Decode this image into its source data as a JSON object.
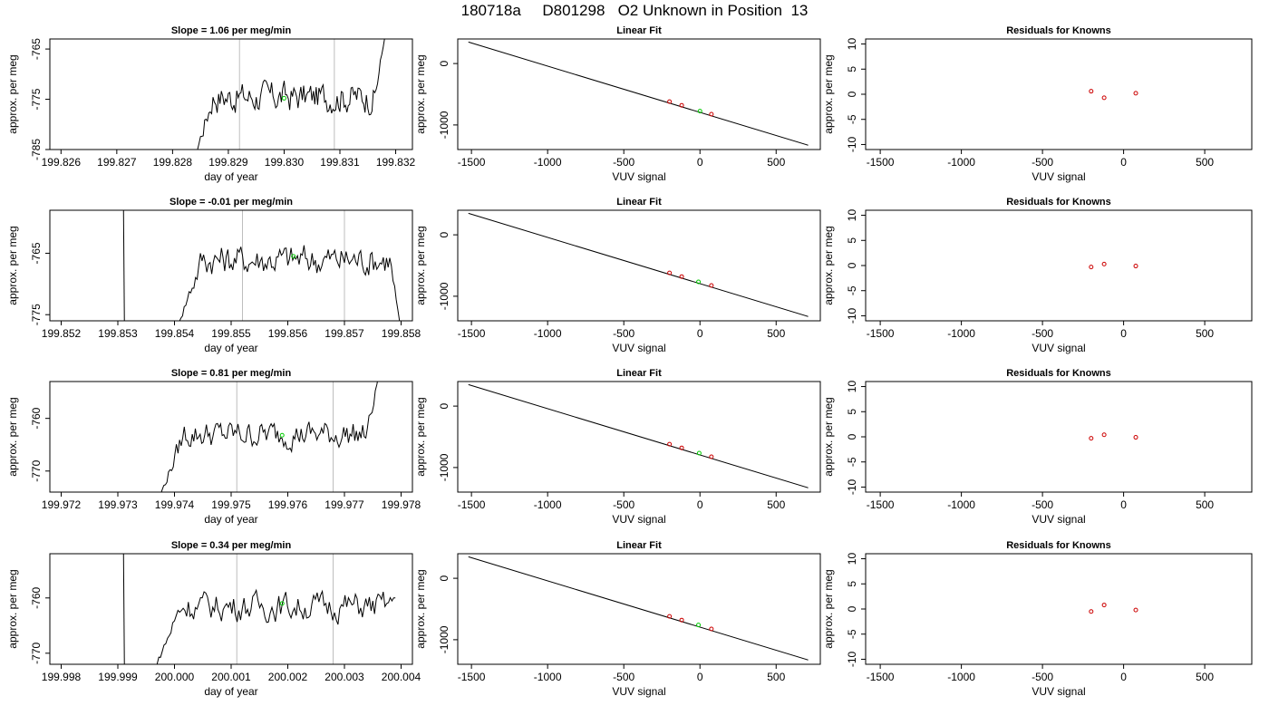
{
  "page_title": "180718a     D801298   O2 Unknown in Position  13",
  "colors": {
    "trace": "#000000",
    "gridline": "#bebebe",
    "unknown_point": "#00cc00",
    "known_point": "#cc0000",
    "frame": "#000000"
  },
  "chart_data": [
    {
      "type": "line",
      "row": 0,
      "title": "Slope =  1.06  per meg/min",
      "xlabel": "day of year",
      "ylabel": "approx. per meg",
      "xlim": [
        199.8258,
        199.8323
      ],
      "ylim": [
        -785,
        -763
      ],
      "xticks": [
        199.826,
        199.827,
        199.828,
        199.829,
        199.83,
        199.831,
        199.832
      ],
      "xtick_labels": [
        "199.826",
        "199.827",
        "199.828",
        "199.829",
        "199.830",
        "199.831",
        "199.832"
      ],
      "yticks": [
        -785,
        -775,
        -765
      ],
      "ytick_labels": [
        "-785",
        "-775",
        "-765"
      ],
      "vlines": [
        199.8292,
        199.8309
      ],
      "trace_range": [
        199.8283,
        199.8318
      ],
      "trace_start": -790,
      "trace_end": -763,
      "trace_center": -774.5,
      "trace_amplitude": 3,
      "marker": {
        "x": 199.83,
        "y": -774.8
      }
    },
    {
      "type": "line",
      "row": 1,
      "title": "Slope =  -0.01  per meg/min",
      "xlabel": "day of year",
      "ylabel": "approx. per meg",
      "xlim": [
        199.8518,
        199.8582
      ],
      "ylim": [
        -776,
        -758
      ],
      "xticks": [
        199.852,
        199.853,
        199.854,
        199.855,
        199.856,
        199.857,
        199.858
      ],
      "xtick_labels": [
        "199.852",
        "199.853",
        "199.854",
        "199.855",
        "199.856",
        "199.857",
        "199.858"
      ],
      "yticks": [
        -775,
        -765
      ],
      "ytick_labels": [
        "-775",
        "-765"
      ],
      "vlines": [
        199.8552,
        199.857
      ],
      "spike_x": 199.8531,
      "trace_range": [
        199.854,
        199.858
      ],
      "trace_start": -778,
      "trace_end": -778,
      "trace_center": -766,
      "trace_amplitude": 2.5,
      "marker": {
        "x": 199.8561,
        "y": -765.5
      }
    },
    {
      "type": "line",
      "row": 2,
      "title": "Slope =  0.81  per meg/min",
      "xlabel": "day of year",
      "ylabel": "approx. per meg",
      "xlim": [
        199.9718,
        199.9782
      ],
      "ylim": [
        -774,
        -753
      ],
      "xticks": [
        199.972,
        199.973,
        199.974,
        199.975,
        199.976,
        199.977,
        199.978
      ],
      "xtick_labels": [
        "199.972",
        "199.973",
        "199.974",
        "199.975",
        "199.976",
        "199.977",
        "199.978"
      ],
      "yticks": [
        -770,
        -760
      ],
      "ytick_labels": [
        "-770",
        "-760"
      ],
      "vlines": [
        199.9751,
        199.9768
      ],
      "trace_range": [
        199.9737,
        199.9776
      ],
      "trace_start": -776,
      "trace_end": -752,
      "trace_center": -763,
      "trace_amplitude": 2.5,
      "marker": {
        "x": 199.9759,
        "y": -763.2
      }
    },
    {
      "type": "line",
      "row": 3,
      "title": "Slope =  0.34  per meg/min",
      "xlabel": "day of year",
      "ylabel": "approx. per meg",
      "xlim": [
        199.9978,
        200.0042
      ],
      "ylim": [
        -772,
        -752
      ],
      "xticks": [
        199.998,
        199.999,
        200.0,
        200.001,
        200.002,
        200.003,
        200.004
      ],
      "xtick_labels": [
        "199.998",
        "199.999",
        "200.000",
        "200.001",
        "200.002",
        "200.003",
        "200.004"
      ],
      "yticks": [
        -770,
        -760
      ],
      "ytick_labels": [
        "-770",
        "-760"
      ],
      "vlines": [
        200.0011,
        200.0028
      ],
      "spike_x": 199.9991,
      "trace_range": [
        199.9996,
        200.0039
      ],
      "trace_start": -774,
      "trace_end": -760,
      "trace_center": -761.5,
      "trace_amplitude": 2.5,
      "marker": {
        "x": 200.0019,
        "y": -761.0
      }
    },
    {
      "type": "scatter",
      "row": 0,
      "title": "Linear Fit",
      "xlabel": "VUV signal",
      "ylabel": "approx. per meg",
      "xlim": [
        -1590,
        790
      ],
      "ylim": [
        -1400,
        400
      ],
      "xticks": [
        -1500,
        -1000,
        -500,
        0,
        500
      ],
      "xtick_labels": [
        "-1500",
        "-1000",
        "-500",
        "0",
        "500"
      ],
      "yticks": [
        -1000,
        0
      ],
      "ytick_labels": [
        "-1000",
        "0"
      ],
      "fit_line": [
        [
          -1520,
          350
        ],
        [
          710,
          -1330
        ]
      ],
      "known_points": [
        [
          -200,
          -620
        ],
        [
          -120,
          -680
        ],
        [
          75,
          -825
        ]
      ],
      "unknown_point": [
        0,
        -775
      ]
    },
    {
      "type": "scatter",
      "row": 1,
      "title": "Linear Fit",
      "xlabel": "VUV signal",
      "ylabel": "approx. per meg",
      "xlim": [
        -1590,
        790
      ],
      "ylim": [
        -1400,
        400
      ],
      "xticks": [
        -1500,
        -1000,
        -500,
        0,
        500
      ],
      "xtick_labels": [
        "-1500",
        "-1000",
        "-500",
        "0",
        "500"
      ],
      "yticks": [
        -1000,
        0
      ],
      "ytick_labels": [
        "-1000",
        "0"
      ],
      "fit_line": [
        [
          -1520,
          350
        ],
        [
          710,
          -1330
        ]
      ],
      "known_points": [
        [
          -200,
          -620
        ],
        [
          -120,
          -680
        ],
        [
          75,
          -825
        ]
      ],
      "unknown_point": [
        -10,
        -765
      ]
    },
    {
      "type": "scatter",
      "row": 2,
      "title": "Linear Fit",
      "xlabel": "VUV signal",
      "ylabel": "approx. per meg",
      "xlim": [
        -1590,
        790
      ],
      "ylim": [
        -1400,
        400
      ],
      "xticks": [
        -1500,
        -1000,
        -500,
        0,
        500
      ],
      "xtick_labels": [
        "-1500",
        "-1000",
        "-500",
        "0",
        "500"
      ],
      "yticks": [
        -1000,
        0
      ],
      "ytick_labels": [
        "-1000",
        "0"
      ],
      "fit_line": [
        [
          -1520,
          350
        ],
        [
          710,
          -1330
        ]
      ],
      "known_points": [
        [
          -200,
          -620
        ],
        [
          -120,
          -680
        ],
        [
          75,
          -825
        ]
      ],
      "unknown_point": [
        -5,
        -765
      ]
    },
    {
      "type": "scatter",
      "row": 3,
      "title": "Linear Fit",
      "xlabel": "VUV signal",
      "ylabel": "approx. per meg",
      "xlim": [
        -1590,
        790
      ],
      "ylim": [
        -1400,
        400
      ],
      "xticks": [
        -1500,
        -1000,
        -500,
        0,
        500
      ],
      "xtick_labels": [
        "-1500",
        "-1000",
        "-500",
        "0",
        "500"
      ],
      "yticks": [
        -1000,
        0
      ],
      "ytick_labels": [
        "-1000",
        "0"
      ],
      "fit_line": [
        [
          -1520,
          350
        ],
        [
          710,
          -1330
        ]
      ],
      "known_points": [
        [
          -200,
          -620
        ],
        [
          -120,
          -680
        ],
        [
          75,
          -825
        ]
      ],
      "unknown_point": [
        -10,
        -760
      ]
    },
    {
      "type": "scatter",
      "row": 0,
      "title": "Residuals for Knowns",
      "xlabel": "VUV signal",
      "ylabel": "approx. per meg",
      "xlim": [
        -1590,
        790
      ],
      "ylim": [
        -11,
        11
      ],
      "xticks": [
        -1500,
        -1000,
        -500,
        0,
        500
      ],
      "xtick_labels": [
        "-1500",
        "-1000",
        "-500",
        "0",
        "500"
      ],
      "yticks": [
        -10,
        -5,
        0,
        5,
        10
      ],
      "ytick_labels": [
        "-10",
        "-5",
        "0",
        "5",
        "10"
      ],
      "known_points": [
        [
          -200,
          0.6
        ],
        [
          -120,
          -0.7
        ],
        [
          75,
          0.2
        ]
      ]
    },
    {
      "type": "scatter",
      "row": 1,
      "title": "Residuals for Knowns",
      "xlabel": "VUV signal",
      "ylabel": "approx. per meg",
      "xlim": [
        -1590,
        790
      ],
      "ylim": [
        -11,
        11
      ],
      "xticks": [
        -1500,
        -1000,
        -500,
        0,
        500
      ],
      "xtick_labels": [
        "-1500",
        "-1000",
        "-500",
        "0",
        "500"
      ],
      "yticks": [
        -10,
        -5,
        0,
        5,
        10
      ],
      "ytick_labels": [
        "-10",
        "-5",
        "0",
        "5",
        "10"
      ],
      "known_points": [
        [
          -200,
          -0.3
        ],
        [
          -120,
          0.3
        ],
        [
          75,
          -0.1
        ]
      ]
    },
    {
      "type": "scatter",
      "row": 2,
      "title": "Residuals for Knowns",
      "xlabel": "VUV signal",
      "ylabel": "approx. per meg",
      "xlim": [
        -1590,
        790
      ],
      "ylim": [
        -11,
        11
      ],
      "xticks": [
        -1500,
        -1000,
        -500,
        0,
        500
      ],
      "xtick_labels": [
        "-1500",
        "-1000",
        "-500",
        "0",
        "500"
      ],
      "yticks": [
        -10,
        -5,
        0,
        5,
        10
      ],
      "ytick_labels": [
        "-10",
        "-5",
        "0",
        "5",
        "10"
      ],
      "known_points": [
        [
          -200,
          -0.3
        ],
        [
          -120,
          0.4
        ],
        [
          75,
          -0.1
        ]
      ]
    },
    {
      "type": "scatter",
      "row": 3,
      "title": "Residuals for Knowns",
      "xlabel": "VUV signal",
      "ylabel": "approx. per meg",
      "xlim": [
        -1590,
        790
      ],
      "ylim": [
        -11,
        11
      ],
      "xticks": [
        -1500,
        -1000,
        -500,
        0,
        500
      ],
      "xtick_labels": [
        "-1500",
        "-1000",
        "-500",
        "0",
        "500"
      ],
      "yticks": [
        -10,
        -5,
        0,
        5,
        10
      ],
      "ytick_labels": [
        "-10",
        "-5",
        "0",
        "5",
        "10"
      ],
      "known_points": [
        [
          -200,
          -0.5
        ],
        [
          -120,
          0.8
        ],
        [
          75,
          -0.2
        ]
      ]
    }
  ]
}
